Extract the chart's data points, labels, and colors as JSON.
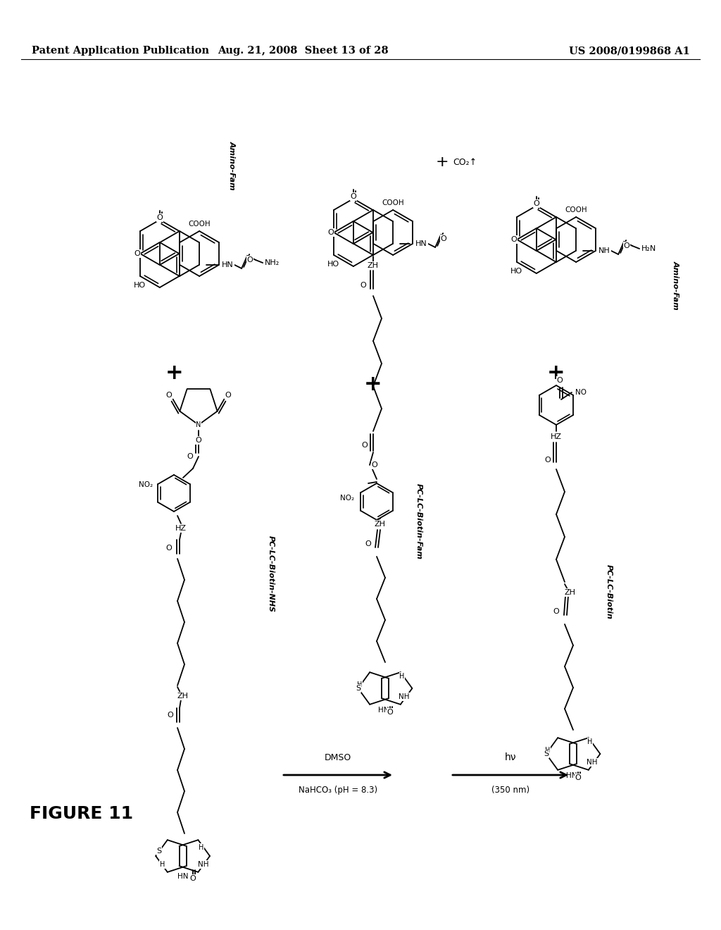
{
  "background_color": "#ffffff",
  "header_left": "Patent Application Publication",
  "header_center": "Aug. 21, 2008  Sheet 13 of 28",
  "header_right": "US 2008/0199868 A1",
  "figure_label": "FIGURE 11",
  "header_font_size": 10.5,
  "figure_font_size": 18
}
